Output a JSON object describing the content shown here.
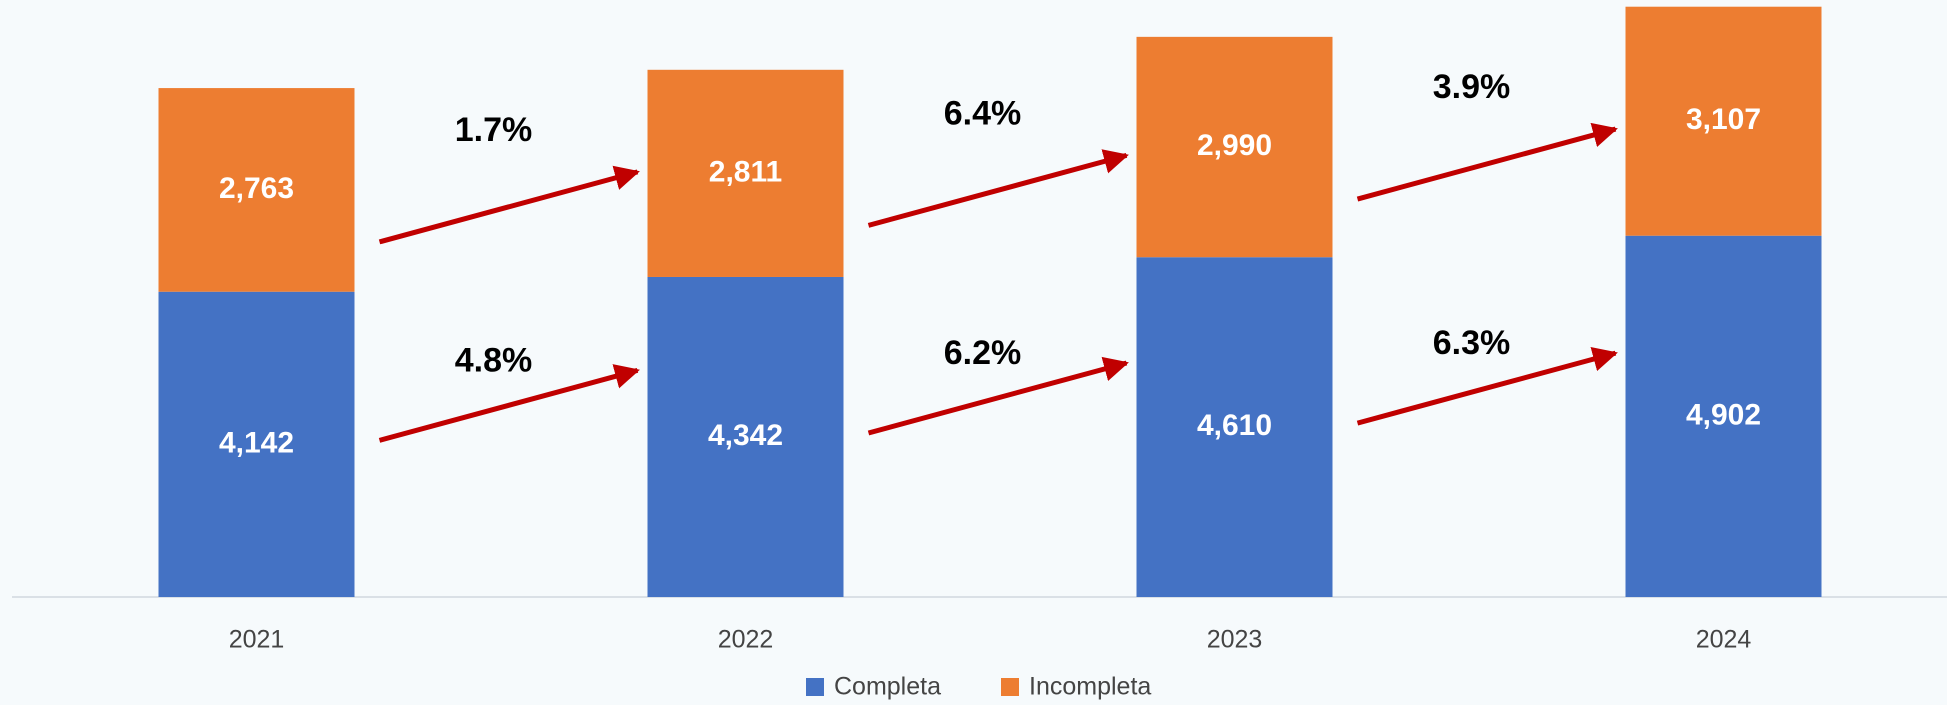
{
  "chart_data": {
    "type": "stacked_bar",
    "categories": [
      "2021",
      "2022",
      "2023",
      "2024"
    ],
    "series": [
      {
        "name": "Completa",
        "color": "#4472c4",
        "values": [
          4142,
          4342,
          4610,
          4902
        ],
        "value_labels": [
          "4,142",
          "4,342",
          "4,610",
          "4,902"
        ],
        "growth_labels": [
          "4.8%",
          "6.2%",
          "6.3%"
        ]
      },
      {
        "name": "Incompleta",
        "color": "#ed7d31",
        "values": [
          2763,
          2811,
          2990,
          3107
        ],
        "value_labels": [
          "2,763",
          "2,811",
          "2,990",
          "3,107"
        ],
        "growth_labels": [
          "1.7%",
          "6.4%",
          "3.9%"
        ]
      }
    ],
    "ylim": [
      0,
      8100
    ],
    "arrow_color": "#c00000",
    "legend": "bottom"
  }
}
